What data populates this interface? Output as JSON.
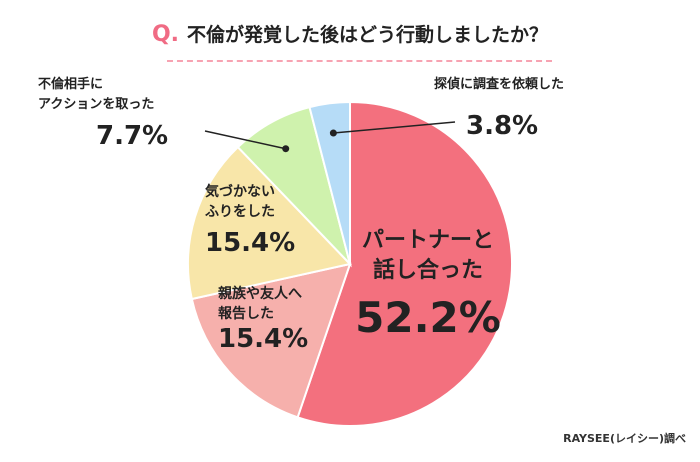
{
  "title": {
    "prefix": "Q.",
    "question": "不倫が発覚した後はどう行動しましたか？"
  },
  "source": "RAYSEE(レイシー)調べ",
  "colors": {
    "accent": "#f06b84",
    "talk": "#f3707e",
    "family": "#f6b0ac",
    "pretend": "#f8e6a9",
    "action": "#cff2ad",
    "detective": "#b6dcf7"
  },
  "chart_data": {
    "type": "pie",
    "title": "不倫が発覚した後はどう行動しましたか？",
    "slices": [
      {
        "label_lines": [
          "パートナーと",
          "話し合った"
        ],
        "value": 52.2,
        "value_text": "52.2%",
        "color": "#f3707e"
      },
      {
        "label_lines": [
          "親族や友人へ",
          "報告した"
        ],
        "value": 15.4,
        "value_text": "15.4%",
        "color": "#f6b0ac"
      },
      {
        "label_lines": [
          "気づかない",
          "ふりをした"
        ],
        "value": 15.4,
        "value_text": "15.4%",
        "color": "#f8e6a9"
      },
      {
        "label_lines": [
          "不倫相手に",
          "アクションを取った"
        ],
        "value": 7.7,
        "value_text": "7.7%",
        "color": "#cff2ad"
      },
      {
        "label_lines": [
          "探偵に調査を依頼した"
        ],
        "value": 3.8,
        "value_text": "3.8%",
        "color": "#b6dcf7"
      }
    ]
  }
}
